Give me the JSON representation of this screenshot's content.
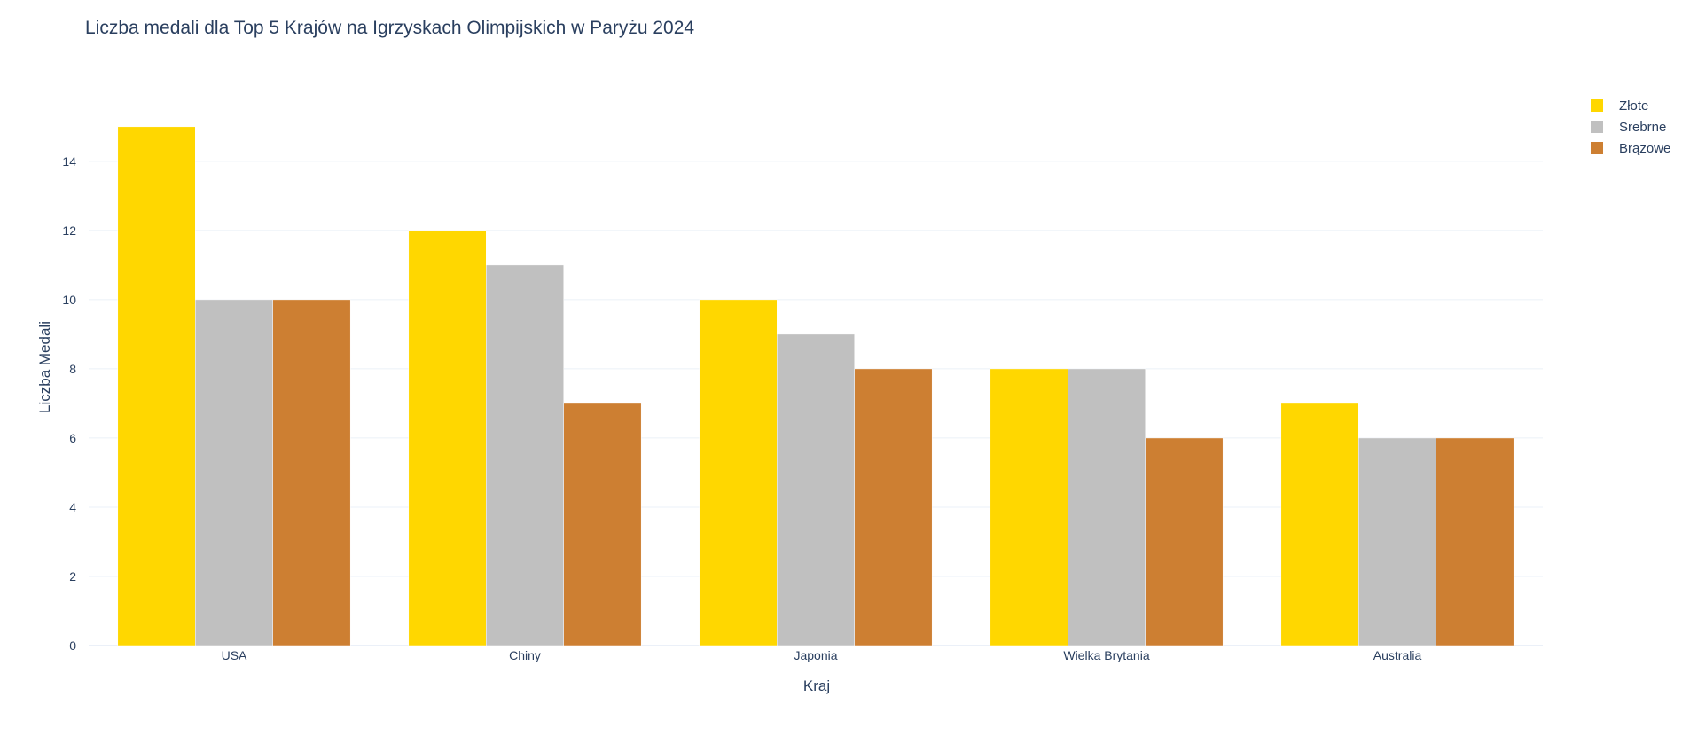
{
  "chart_data": {
    "type": "bar",
    "title": "Liczba medali dla Top 5 Krajów na Igrzyskach Olimpijskich w Paryżu 2024",
    "xlabel": "Kraj",
    "ylabel": "Liczba Medali",
    "categories": [
      "USA",
      "Chiny",
      "Japonia",
      "Wielka Brytania",
      "Australia"
    ],
    "series": [
      {
        "name": "Złote",
        "color": "#FFD700",
        "values": [
          15,
          12,
          10,
          8,
          7
        ]
      },
      {
        "name": "Srebrne",
        "color": "#C0C0C0",
        "values": [
          10,
          11,
          9,
          8,
          6
        ]
      },
      {
        "name": "Brązowe",
        "color": "#CD7F32",
        "values": [
          10,
          7,
          8,
          6,
          6
        ]
      }
    ],
    "yticks": [
      0,
      2,
      4,
      6,
      8,
      10,
      12,
      14
    ],
    "ylim": [
      0,
      15.79
    ],
    "grid": true,
    "legend_position": "top-right"
  }
}
